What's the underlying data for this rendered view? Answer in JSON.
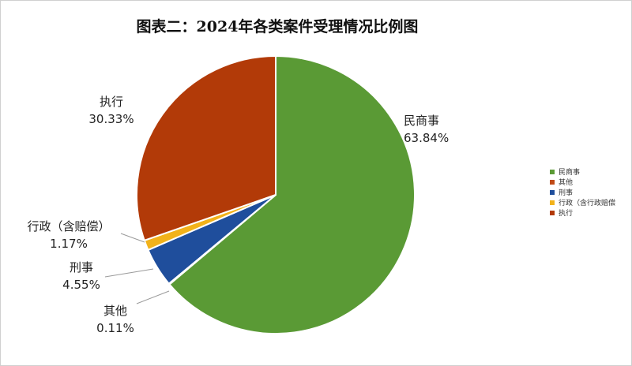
{
  "chart_data": {
    "type": "pie",
    "title": "图表二：2024年各类案件受理情况比例图",
    "slices": [
      {
        "name": "民商事",
        "label": "民商事",
        "value": 63.84,
        "value_label": "63.84%",
        "color": "#5a9a35"
      },
      {
        "name": "其他",
        "label": "其他",
        "value": 0.11,
        "value_label": "0.11%",
        "color": "#c04a16"
      },
      {
        "name": "刑事",
        "label": "刑事",
        "value": 4.55,
        "value_label": "4.55%",
        "color": "#1f4e9c"
      },
      {
        "name": "行政（含行政赔偿",
        "label": "行政（含赔偿）",
        "value": 1.17,
        "value_label": "1.17%",
        "color": "#f2b21a"
      },
      {
        "name": "执行",
        "label": "执行",
        "value": 30.33,
        "value_label": "30.33%",
        "color": "#b23a08"
      }
    ],
    "legend": [
      "民商事",
      "其他",
      "刑事",
      "行政（含行政赔偿",
      "执行"
    ],
    "legend_position": "right"
  }
}
